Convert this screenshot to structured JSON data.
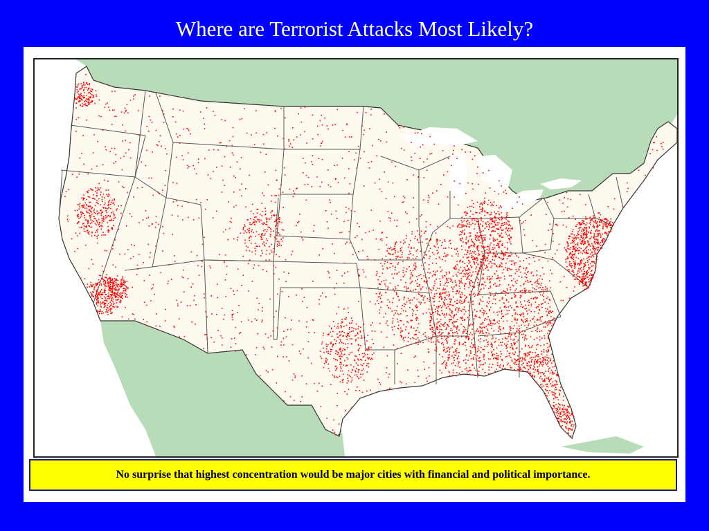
{
  "slide": {
    "title": "Where are Terrorist Attacks Most Likely?",
    "caption": "No surprise that highest concentration would be major cities with financial and political importance."
  },
  "map": {
    "subject": "contiguous United States",
    "colors": {
      "background": "#0000ff",
      "land_us": "#fffaf0",
      "land_neighbors": "#b8dcb8",
      "water": "#ffffff",
      "borders": "#444444",
      "points": "#ff0000",
      "caption_bg": "#ffff00"
    }
  }
}
